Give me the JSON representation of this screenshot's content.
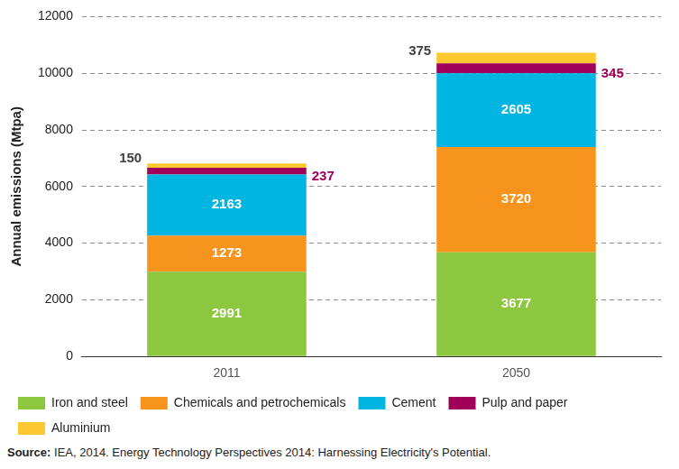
{
  "chart_data": {
    "type": "bar",
    "y_label": "Annual emissions (Mtpa)",
    "categories": [
      "2011",
      "2050"
    ],
    "series": [
      {
        "name": "Iron and steel",
        "color": "#8dc63f",
        "values": [
          2991,
          3677
        ]
      },
      {
        "name": "Chemicals and petrochemicals",
        "color": "#f7941d",
        "values": [
          1273,
          3720
        ]
      },
      {
        "name": "Cement",
        "color": "#00b5e2",
        "values": [
          2163,
          2605
        ]
      },
      {
        "name": "Pulp and paper",
        "color": "#a0005a",
        "values": [
          237,
          345
        ]
      },
      {
        "name": "Aluminium",
        "color": "#fdc82f",
        "values": [
          150,
          375
        ]
      }
    ],
    "ylim": [
      0,
      12000
    ],
    "yticks": [
      0,
      2000,
      4000,
      6000,
      8000,
      10000,
      12000
    ],
    "grid": true,
    "stacked": true,
    "data_labels": true,
    "legend": "bottom",
    "source": "Source: IEA, 2014. Energy Technology Perspectives 2014: Harnessing Electricity's Potential."
  }
}
